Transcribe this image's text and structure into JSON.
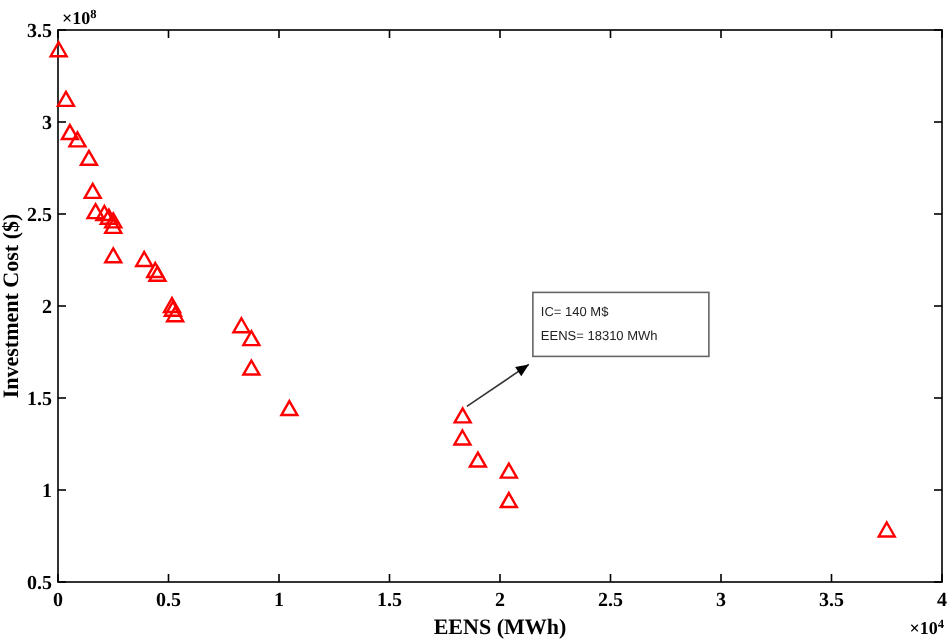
{
  "chart_data": {
    "type": "scatter",
    "xlabel": "EENS (MWh)",
    "ylabel": "Investment Cost ($)",
    "x": [
      0.003,
      0.036,
      0.054,
      0.088,
      0.14,
      0.157,
      0.17,
      0.21,
      0.23,
      0.25,
      0.25,
      0.25,
      0.39,
      0.44,
      0.45,
      0.516,
      0.52,
      0.53,
      0.83,
      0.875,
      0.875,
      1.047,
      1.831,
      1.83,
      1.9,
      2.04,
      2.04,
      3.75
    ],
    "series": [
      {
        "color": "#ff0000",
        "values": [
          3.39,
          3.12,
          2.94,
          2.9,
          2.8,
          2.62,
          2.51,
          2.5,
          2.48,
          2.46,
          2.43,
          2.27,
          2.25,
          2.19,
          2.17,
          2.0,
          1.98,
          1.95,
          1.89,
          1.82,
          1.66,
          1.44,
          1.4,
          1.28,
          1.16,
          1.1,
          0.94,
          0.78
        ]
      }
    ],
    "xlim": [
      0,
      4
    ],
    "xticks": [
      0,
      0.5,
      1,
      1.5,
      2,
      2.5,
      3,
      3.5,
      4
    ],
    "ylim": [
      0.5,
      3.5
    ],
    "yticks": [
      0.5,
      1,
      1.5,
      2,
      2.5,
      3,
      3.5
    ],
    "marker": "triangle",
    "grid": false,
    "annotations": [
      "IC= 140 M$\nEENS= 18310 MWh",
      "×10$^{8}$",
      "×10$^{4}$"
    ]
  }
}
